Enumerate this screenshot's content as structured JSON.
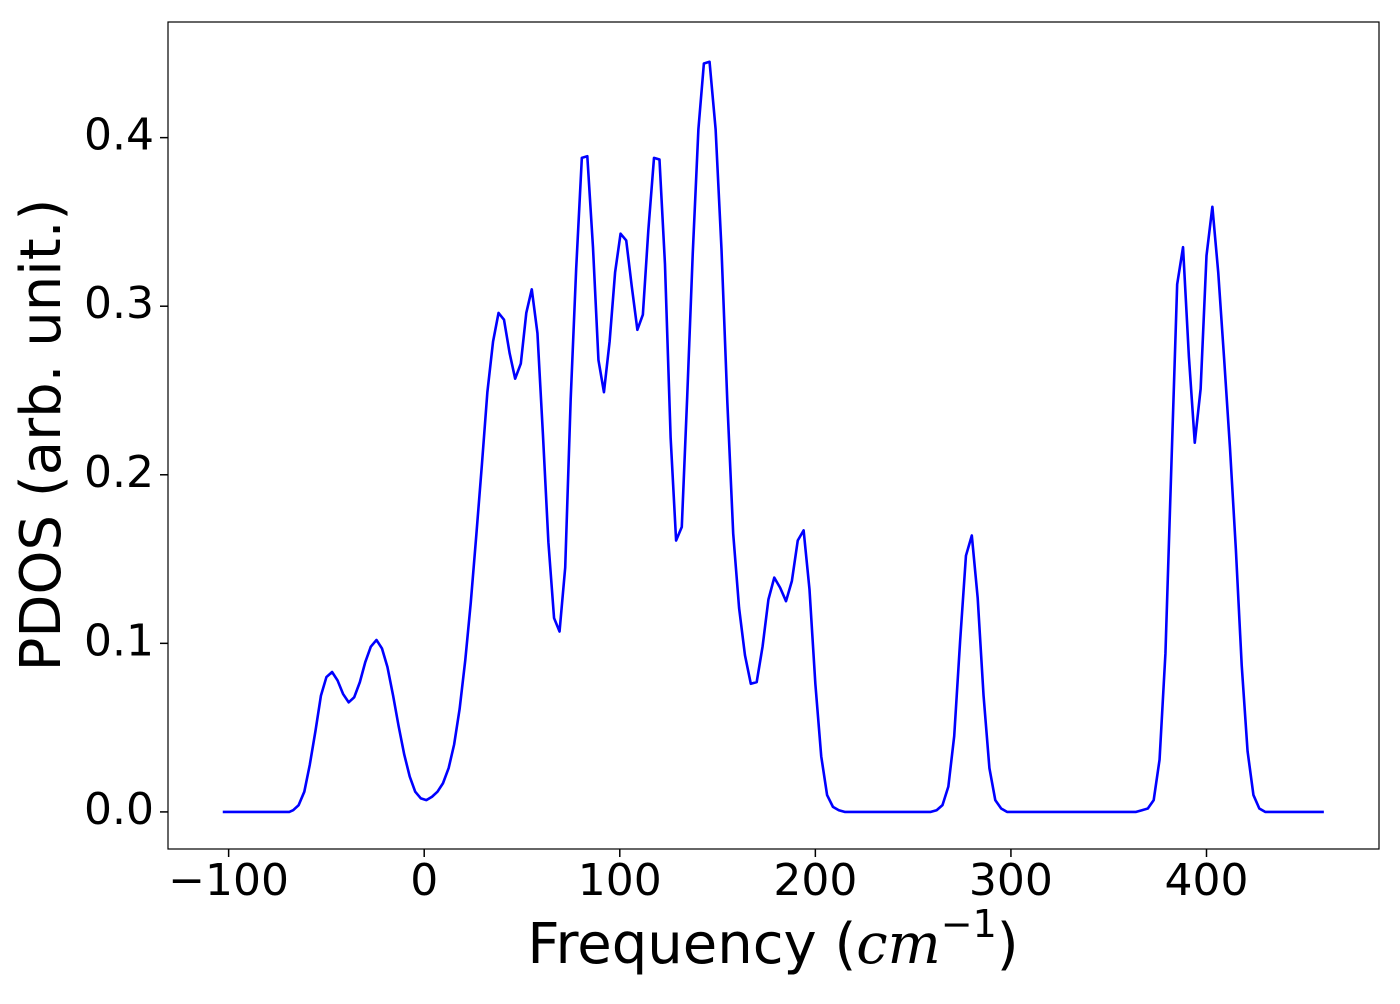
{
  "chart_data": {
    "type": "line",
    "xlabel": [
      "Frequency (",
      "cm",
      "−1",
      ")"
    ],
    "ylabel": "PDOS (arb. unit.)",
    "x": [
      -103,
      -69,
      -67.0,
      -64.2,
      -61.3,
      -58.5,
      -55.6,
      -52.8,
      -50.0,
      -47.1,
      -44.3,
      -41.5,
      -38.6,
      -35.8,
      -32.9,
      -30.1,
      -27.3,
      -24.4,
      -21.6,
      -18.8,
      -15.9,
      -13.1,
      -10.2,
      -7.4,
      -4.6,
      -1.7,
      1.1,
      4.0,
      6.8,
      9.6,
      12.5,
      15.3,
      18.1,
      21.0,
      23.8,
      26.7,
      29.5,
      32.3,
      35.2,
      38.0,
      40.8,
      43.7,
      46.5,
      49.4,
      52.2,
      55.0,
      57.9,
      60.7,
      63.5,
      66.4,
      69.2,
      72.1,
      74.9,
      77.7,
      80.6,
      83.4,
      86.3,
      89.1,
      91.9,
      94.8,
      97.6,
      100.4,
      103.3,
      106.1,
      109.0,
      111.8,
      114.6,
      117.5,
      120.3,
      123.1,
      126.0,
      128.8,
      131.7,
      134.5,
      137.3,
      140.2,
      143.0,
      145.9,
      149,
      152,
      155,
      158,
      161,
      164,
      167,
      170,
      173,
      176,
      179,
      182,
      185,
      188,
      191,
      194,
      197,
      200,
      203,
      206,
      209,
      212,
      215,
      259,
      262,
      265,
      268,
      271,
      274,
      277,
      280,
      283,
      286,
      289,
      292,
      295,
      298,
      364,
      367,
      370,
      373,
      376,
      379,
      382,
      385,
      388,
      391,
      394,
      397,
      400,
      403,
      406,
      409,
      412,
      415,
      418,
      421,
      424,
      427,
      430,
      460
    ],
    "series": [
      {
        "color": "#0000ff",
        "values": [
          0,
          0,
          0.001,
          0.004,
          0.012,
          0.028,
          0.048,
          0.069,
          0.08,
          0.083,
          0.078,
          0.07,
          0.065,
          0.068,
          0.077,
          0.089,
          0.098,
          0.102,
          0.097,
          0.086,
          0.069,
          0.051,
          0.034,
          0.021,
          0.012,
          0.008,
          0.007,
          0.009,
          0.012,
          0.017,
          0.026,
          0.04,
          0.061,
          0.09,
          0.124,
          0.165,
          0.206,
          0.249,
          0.279,
          0.296,
          0.292,
          0.272,
          0.257,
          0.266,
          0.296,
          0.31,
          0.284,
          0.224,
          0.16,
          0.115,
          0.107,
          0.145,
          0.245,
          0.322,
          0.388,
          0.389,
          0.335,
          0.268,
          0.249,
          0.279,
          0.32,
          0.343,
          0.339,
          0.312,
          0.286,
          0.295,
          0.345,
          0.388,
          0.387,
          0.325,
          0.222,
          0.161,
          0.169,
          0.247,
          0.331,
          0.405,
          0.444,
          0.445,
          0.405,
          0.334,
          0.243,
          0.165,
          0.121,
          0.093,
          0.076,
          0.077,
          0.098,
          0.126,
          0.139,
          0.133,
          0.125,
          0.137,
          0.161,
          0.167,
          0.132,
          0.076,
          0.033,
          0.01,
          0.003,
          0.001,
          0,
          0,
          0.001,
          0.004,
          0.015,
          0.045,
          0.101,
          0.152,
          0.164,
          0.127,
          0.069,
          0.026,
          0.007,
          0.002,
          0,
          0,
          0.001,
          0.002,
          0.007,
          0.031,
          0.094,
          0.204,
          0.313,
          0.335,
          0.27,
          0.219,
          0.251,
          0.33,
          0.359,
          0.32,
          0.269,
          0.216,
          0.156,
          0.087,
          0.036,
          0.01,
          0.002,
          0,
          0
        ]
      }
    ],
    "xlim": [
      -131,
      488.2
    ],
    "ylim": [
      -0.022,
      0.4686
    ],
    "xticks": [
      {
        "value": -100,
        "label": "−100"
      },
      0,
      100,
      200,
      300,
      400
    ],
    "yticks": [
      {
        "value": 0,
        "label": "0.0"
      },
      0.1,
      0.2,
      0.3,
      0.4
    ],
    "grid": false
  }
}
